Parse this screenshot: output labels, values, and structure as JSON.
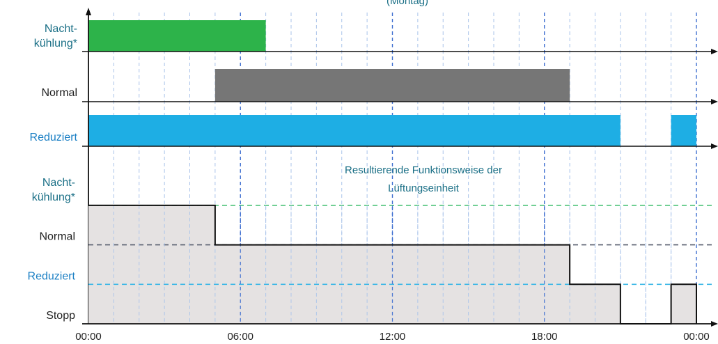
{
  "chart_data": {
    "type": "area",
    "title_partial": "(Montag)",
    "x_unit": "hours",
    "x_range": [
      0,
      24
    ],
    "x_ticks": [
      "00:00",
      "06:00",
      "12:00",
      "18:00",
      "00:00"
    ],
    "schedules": [
      {
        "name": "Nacht-\nkühlung*",
        "color": "#2db34a",
        "label_color": "#1a6f86",
        "periods": [
          [
            0,
            7
          ]
        ]
      },
      {
        "name": "Normal",
        "color": "#767676",
        "label_color": "#222222",
        "periods": [
          [
            5,
            19
          ]
        ]
      },
      {
        "name": "Reduziert",
        "color": "#1eaee4",
        "label_color": "#1a7fc4",
        "periods": [
          [
            0,
            21
          ],
          [
            23,
            24
          ]
        ]
      }
    ],
    "result": {
      "title": "Resultierende Funktionsweise der Lüftungseinheit",
      "levels": [
        {
          "name": "Nacht-\nkühlung*",
          "value": 3,
          "label_color": "#1a6f86",
          "line_color": "#4fc47a"
        },
        {
          "name": "Normal",
          "value": 2,
          "label_color": "#222222",
          "line_color": "#5a6070"
        },
        {
          "name": "Reduziert",
          "value": 1,
          "label_color": "#1a7fc4",
          "line_color": "#38b6e6"
        },
        {
          "name": "Stopp",
          "value": 0,
          "label_color": "#222222",
          "line_color": ""
        }
      ],
      "steps": [
        [
          0,
          3
        ],
        [
          5,
          2
        ],
        [
          19,
          1
        ],
        [
          21,
          0
        ],
        [
          23,
          1
        ],
        [
          24,
          0
        ]
      ],
      "fill_color": "#e5e2e2"
    }
  }
}
